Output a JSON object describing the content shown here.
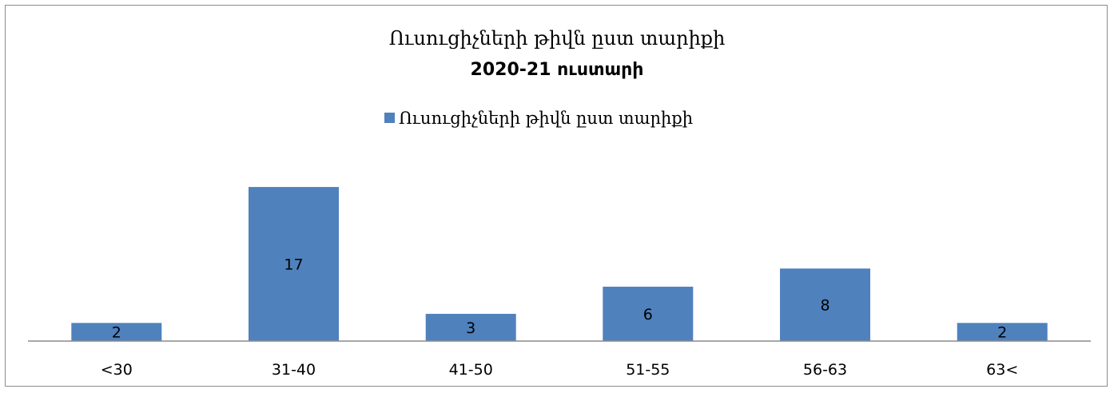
{
  "chart_data": {
    "type": "bar",
    "title": "Ուսուցիչների թիվն ըստ տարիքի",
    "subtitle": "2020-21 ուստարի",
    "categories": [
      "<30",
      "31-40",
      "41-50",
      "51-55",
      "56-63",
      "63<"
    ],
    "series": [
      {
        "name": "Ուսուցիչների թիվն ըստ տարիքի",
        "values": [
          2,
          17,
          3,
          6,
          8,
          2
        ],
        "color": "#4f81bd"
      }
    ],
    "legend_position": "top",
    "grid": false,
    "data_labels": true
  }
}
